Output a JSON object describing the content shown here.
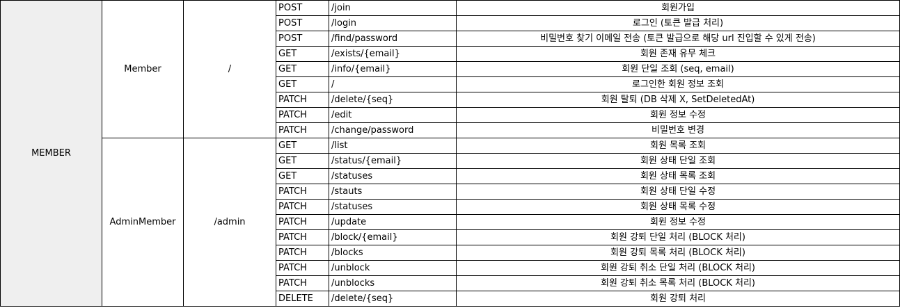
{
  "category": "MEMBER",
  "groups": [
    {
      "name": "Member",
      "base_path": "/",
      "rows": [
        {
          "method": "POST",
          "path": "/join",
          "desc": "회원가입"
        },
        {
          "method": "POST",
          "path": "/login",
          "desc": "로그인 (토큰 발급 처리)"
        },
        {
          "method": "POST",
          "path": "/find/password",
          "desc": "비밀번호 찾기 이메일 전송 (토큰 발급으로 해당 url 진입할 수 있게 전송)"
        },
        {
          "method": "GET",
          "path": "/exists/{email}",
          "desc": "회원 존재 유무 체크"
        },
        {
          "method": "GET",
          "path": "/info/{email}",
          "desc": "회원 단일 조회 (seq, email)"
        },
        {
          "method": "GET",
          "path": "/",
          "desc": "로그인한 회원 정보 조회"
        },
        {
          "method": "PATCH",
          "path": "/delete/{seq}",
          "desc": "회원 탈퇴 (DB 삭제 X, SetDeletedAt)"
        },
        {
          "method": "PATCH",
          "path": "/edit",
          "desc": "회원 정보 수정"
        },
        {
          "method": "PATCH",
          "path": "/change/password",
          "desc": "비밀번호 변경"
        }
      ]
    },
    {
      "name": "AdminMember",
      "base_path": "/admin",
      "rows": [
        {
          "method": "GET",
          "path": "/list",
          "desc": "회원 목록 조회"
        },
        {
          "method": "GET",
          "path": "/status/{email}",
          "desc": "회원 상태 단일 조회"
        },
        {
          "method": "GET",
          "path": "/statuses",
          "desc": "회원 상태 목록 조회"
        },
        {
          "method": "PATCH",
          "path": "/stauts",
          "desc": "회원 상태 단일 수정"
        },
        {
          "method": "PATCH",
          "path": "/statuses",
          "desc": "회원 상태 목록 수정"
        },
        {
          "method": "PATCH",
          "path": "/update",
          "desc": "회원 정보 수정"
        },
        {
          "method": "PATCH",
          "path": "/block/{email}",
          "desc": "회원 강퇴 단일 처리 (BLOCK 처리)"
        },
        {
          "method": "PATCH",
          "path": "/blocks",
          "desc": "회원 강퇴 목록 처리 (BLOCK 처리)"
        },
        {
          "method": "PATCH",
          "path": "/unblock",
          "desc": "회원 강퇴 취소 단일 처리 (BLOCK 처리)"
        },
        {
          "method": "PATCH",
          "path": "/unblocks",
          "desc": "회원 강퇴 취소 목록 처리 (BLOCK 처리)"
        },
        {
          "method": "DELETE",
          "path": "/delete/{seq}",
          "desc": "회원 강퇴 처리"
        }
      ]
    }
  ]
}
